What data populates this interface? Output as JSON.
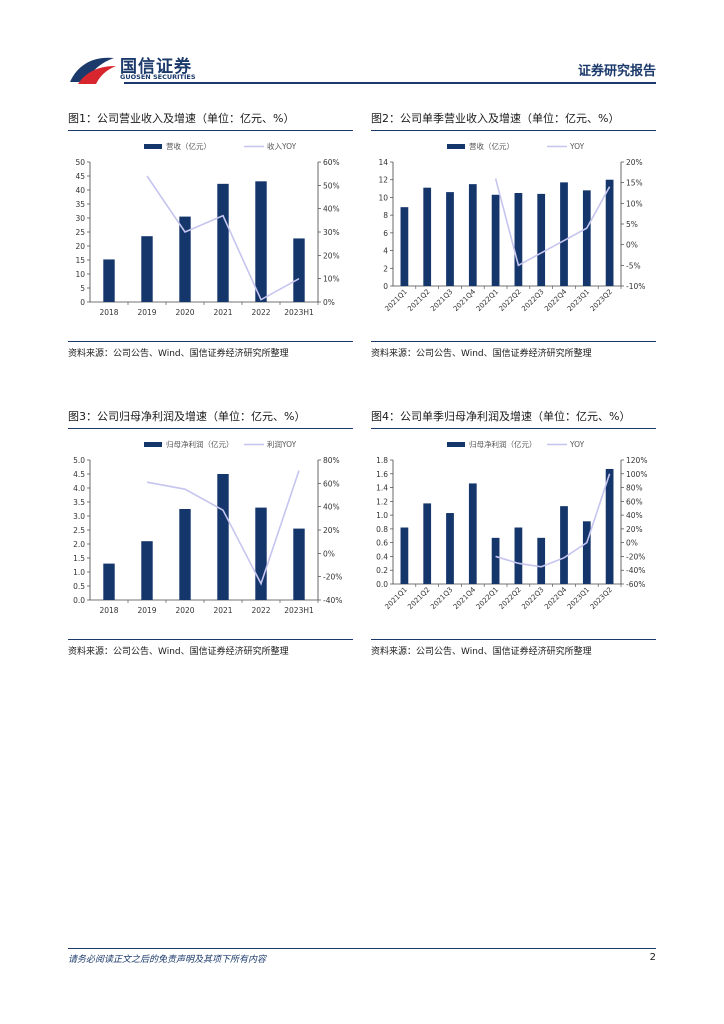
{
  "header": {
    "logo_cn": "国信证券",
    "logo_en": "GUOSEN SECURITIES",
    "report_tag": "证券研究报告"
  },
  "figures": [
    {
      "title": "图1：公司营业收入及增速（单位：亿元、%）",
      "source": "资料来源：公司公告、Wind、国信证券经济研究所整理"
    },
    {
      "title": "图2：公司单季营业收入及增速（单位：亿元、%）",
      "source": "资料来源：公司公告、Wind、国信证券经济研究所整理"
    },
    {
      "title": "图3：公司归母净利润及增速（单位：亿元、%）",
      "source": "资料来源：公司公告、Wind、国信证券经济研究所整理"
    },
    {
      "title": "图4：公司单季归母净利润及增速（单位：亿元、%）",
      "source": "资料来源：公司公告、Wind、国信证券经济研究所整理"
    }
  ],
  "chart_data": [
    {
      "type": "bar",
      "categories": [
        "2018",
        "2019",
        "2020",
        "2021",
        "2022",
        "2023H1"
      ],
      "series": [
        {
          "name": "营收（亿元）",
          "kind": "bar",
          "axis": "left",
          "values": [
            15.2,
            23.5,
            30.5,
            42.2,
            43.1,
            22.7
          ]
        },
        {
          "name": "收入YOY",
          "kind": "line",
          "axis": "right",
          "values": [
            null,
            54,
            30,
            37,
            1,
            10
          ]
        }
      ],
      "ylim_left": [
        0,
        50
      ],
      "yticks_left": [
        0,
        5,
        10,
        15,
        20,
        25,
        30,
        35,
        40,
        45,
        50
      ],
      "ylim_right": [
        0,
        60
      ],
      "yticks_right": [
        0,
        10,
        20,
        30,
        40,
        50,
        60
      ],
      "right_suffix": "%",
      "rotate_x": false,
      "bar_color": "#14366b",
      "line_color": "#c5c5ef",
      "legend": "top"
    },
    {
      "type": "bar",
      "categories": [
        "2021Q1",
        "2021Q2",
        "2021Q3",
        "2021Q4",
        "2022Q1",
        "2022Q2",
        "2022Q3",
        "2022Q4",
        "2023Q1",
        "2023Q2"
      ],
      "series": [
        {
          "name": "营收（亿元）",
          "kind": "bar",
          "axis": "left",
          "values": [
            8.9,
            11.1,
            10.6,
            11.5,
            10.3,
            10.5,
            10.4,
            11.7,
            10.8,
            12.0
          ]
        },
        {
          "name": "YOY",
          "kind": "line",
          "axis": "right",
          "values": [
            null,
            null,
            null,
            null,
            16,
            -5,
            -2,
            1,
            4,
            14
          ]
        }
      ],
      "ylim_left": [
        0,
        14
      ],
      "yticks_left": [
        0,
        2,
        4,
        6,
        8,
        10,
        12,
        14
      ],
      "ylim_right": [
        -10,
        20
      ],
      "yticks_right": [
        -10,
        -5,
        0,
        5,
        10,
        15,
        20
      ],
      "right_suffix": "%",
      "rotate_x": true,
      "bar_color": "#14366b",
      "line_color": "#c5c5ef",
      "legend": "top"
    },
    {
      "type": "bar",
      "categories": [
        "2018",
        "2019",
        "2020",
        "2021",
        "2022",
        "2023H1"
      ],
      "series": [
        {
          "name": "归母净利润（亿元）",
          "kind": "bar",
          "axis": "left",
          "values": [
            1.3,
            2.1,
            3.25,
            4.5,
            3.3,
            2.55
          ]
        },
        {
          "name": "利润YOY",
          "kind": "line",
          "axis": "right",
          "values": [
            null,
            61,
            55,
            37,
            -26,
            71
          ]
        }
      ],
      "ylim_left": [
        0,
        5
      ],
      "yticks_left": [
        0,
        0.5,
        1.0,
        1.5,
        2.0,
        2.5,
        3.0,
        3.5,
        4.0,
        4.5,
        5.0
      ],
      "left_decimals": 1,
      "ylim_right": [
        -40,
        80
      ],
      "yticks_right": [
        -40,
        -20,
        0,
        20,
        40,
        60,
        80
      ],
      "right_suffix": "%",
      "rotate_x": false,
      "bar_color": "#14366b",
      "line_color": "#c5c5ef",
      "legend": "top"
    },
    {
      "type": "bar",
      "categories": [
        "2021Q1",
        "2021Q2",
        "2021Q3",
        "2021Q4",
        "2022Q1",
        "2022Q2",
        "2022Q3",
        "2022Q4",
        "2023Q1",
        "2023Q2"
      ],
      "series": [
        {
          "name": "归母净利润（亿元）",
          "kind": "bar",
          "axis": "left",
          "values": [
            0.82,
            1.17,
            1.03,
            1.46,
            0.67,
            0.82,
            0.67,
            1.13,
            0.91,
            1.67
          ]
        },
        {
          "name": "YOY",
          "kind": "line",
          "axis": "right",
          "values": [
            null,
            null,
            null,
            null,
            -20,
            -30,
            -35,
            -22,
            0,
            100
          ]
        }
      ],
      "ylim_left": [
        0,
        1.8
      ],
      "yticks_left": [
        0,
        0.2,
        0.4,
        0.6,
        0.8,
        1.0,
        1.2,
        1.4,
        1.6,
        1.8
      ],
      "left_decimals": 1,
      "ylim_right": [
        -60,
        120
      ],
      "yticks_right": [
        -60,
        -40,
        -20,
        0,
        20,
        40,
        60,
        80,
        100,
        120
      ],
      "right_suffix": "%",
      "rotate_x": true,
      "bar_color": "#14366b",
      "line_color": "#c5c5ef",
      "legend": "top"
    }
  ],
  "footer": {
    "disclaimer": "请务必阅读正文之后的免责声明及其项下所有内容",
    "page": "2"
  }
}
